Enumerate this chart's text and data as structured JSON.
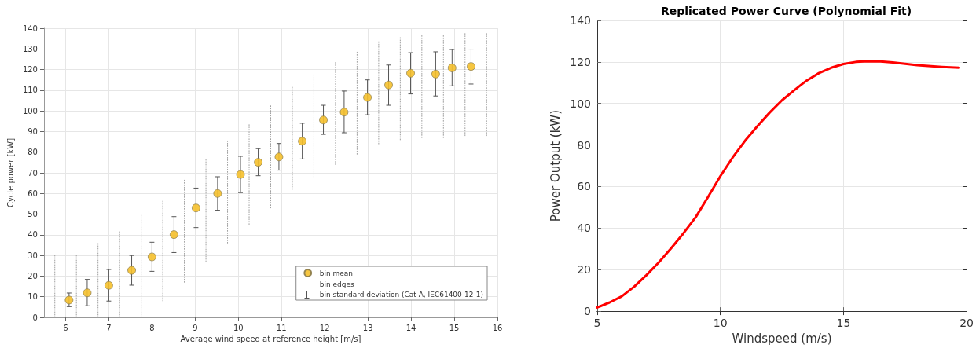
{
  "chart_data": [
    {
      "type": "scatter",
      "xlabel": "Average wind speed at reference height [m/s]",
      "ylabel": "Cycle power [kW]",
      "xlim": [
        5.5,
        16
      ],
      "xticks": [
        6,
        7,
        8,
        9,
        10,
        11,
        12,
        13,
        14,
        15,
        16
      ],
      "ylim": [
        0,
        140
      ],
      "yticks": [
        0,
        10,
        20,
        30,
        40,
        50,
        60,
        70,
        80,
        90,
        100,
        110,
        120,
        130,
        140
      ],
      "grid": true,
      "legend": "bottom right",
      "marker": "circle",
      "annotations": [
        "bin standard deviation (Cat A, IEC61400-12-1)"
      ],
      "series": [
        {
          "name": "bin mean",
          "color": "#f5c02c",
          "x": [
            6.08,
            6.5,
            7.0,
            7.53,
            8.0,
            8.51,
            9.02,
            9.52,
            10.05,
            10.46,
            10.94,
            11.48,
            11.97,
            12.45,
            12.99,
            13.48,
            13.99,
            14.57,
            14.95,
            15.39
          ],
          "values": [
            8.4,
            11.9,
            15.5,
            22.8,
            29.3,
            40.1,
            53,
            60,
            69.2,
            75.1,
            77.7,
            85.3,
            95.6,
            99.4,
            106.5,
            112.5,
            118.2,
            117.8,
            120.8,
            121.5
          ],
          "errors": [
            [
              5.2,
              11.8
            ],
            [
              5.6,
              18.4
            ],
            [
              7.9,
              23.2
            ],
            [
              15.6,
              30
            ],
            [
              22.3,
              36.4
            ],
            [
              31.4,
              48.8
            ],
            [
              43.5,
              62.6
            ],
            [
              51.9,
              68.1
            ],
            [
              60.4,
              78
            ],
            [
              68.6,
              81.7
            ],
            [
              71.3,
              84.2
            ],
            [
              76.7,
              94
            ],
            [
              88.6,
              102.7
            ],
            [
              89.4,
              109.6
            ],
            [
              98.1,
              115
            ],
            [
              102.7,
              122.2
            ],
            [
              108.2,
              128.2
            ],
            [
              107.2,
              128.6
            ],
            [
              112.1,
              129.7
            ],
            [
              113,
              129.9
            ]
          ]
        },
        {
          "name": "bin edges",
          "type": "line",
          "color": "#a0a0a0",
          "marker": "none",
          "line_style": "dotted",
          "x": [
            5.75,
            5.75,
            null,
            6.25,
            6.25,
            null,
            6.75,
            6.75,
            null,
            7.25,
            7.25,
            null,
            7.75,
            7.75,
            null,
            8.25,
            8.25,
            null,
            8.75,
            8.75,
            null,
            9.25,
            9.25,
            null,
            9.75,
            9.75,
            null,
            10.25,
            10.25,
            null,
            10.75,
            10.75,
            null,
            11.25,
            11.25,
            null,
            11.75,
            11.75,
            null,
            12.25,
            12.25,
            null,
            12.75,
            12.75,
            null,
            13.25,
            13.25,
            null,
            13.75,
            13.75,
            null,
            14.25,
            14.25,
            null,
            14.75,
            14.75,
            null,
            15.25,
            15.25,
            null,
            15.75,
            15.75
          ],
          "values": [
            0,
            30,
            null,
            0,
            30,
            null,
            0,
            36,
            null,
            0,
            42,
            null,
            0,
            50,
            null,
            8,
            57,
            null,
            17,
            67,
            null,
            27,
            77,
            null,
            36,
            86,
            null,
            45,
            94,
            null,
            53,
            103,
            null,
            62,
            112,
            null,
            68,
            118,
            null,
            74,
            124,
            null,
            79,
            129,
            null,
            84,
            134,
            null,
            86,
            136,
            null,
            87,
            137,
            null,
            87,
            137,
            null,
            88,
            138,
            null,
            88,
            138
          ]
        }
      ]
    },
    {
      "type": "line",
      "title": "Replicated Power Curve (Polynomial Fit)",
      "xlabel": "Windspeed (m/s)",
      "ylabel": "Power Output (kW)",
      "xlim": [
        5,
        20
      ],
      "xticks": [
        5,
        10,
        15,
        20
      ],
      "ylim": [
        0,
        140
      ],
      "yticks": [
        0,
        20,
        40,
        60,
        80,
        100,
        120,
        140
      ],
      "grid": true,
      "series": [
        {
          "color": "#ff0000",
          "x": [
            5,
            5.5,
            6,
            6.5,
            7,
            7.5,
            8,
            8.5,
            9,
            9.5,
            10,
            10.5,
            11,
            11.5,
            12,
            12.5,
            13,
            13.5,
            14,
            14.5,
            15,
            15.5,
            16,
            16.5,
            17,
            18,
            19,
            19.7
          ],
          "values": [
            1.8,
            4.2,
            7.2,
            11.8,
            17.4,
            23.5,
            30.3,
            37.5,
            45.3,
            55,
            65,
            74,
            82,
            89,
            95.6,
            101.5,
            106.4,
            111,
            114.6,
            117.2,
            119,
            120,
            120.3,
            120.2,
            119.8,
            118.4,
            117.6,
            117.2
          ]
        }
      ]
    }
  ]
}
